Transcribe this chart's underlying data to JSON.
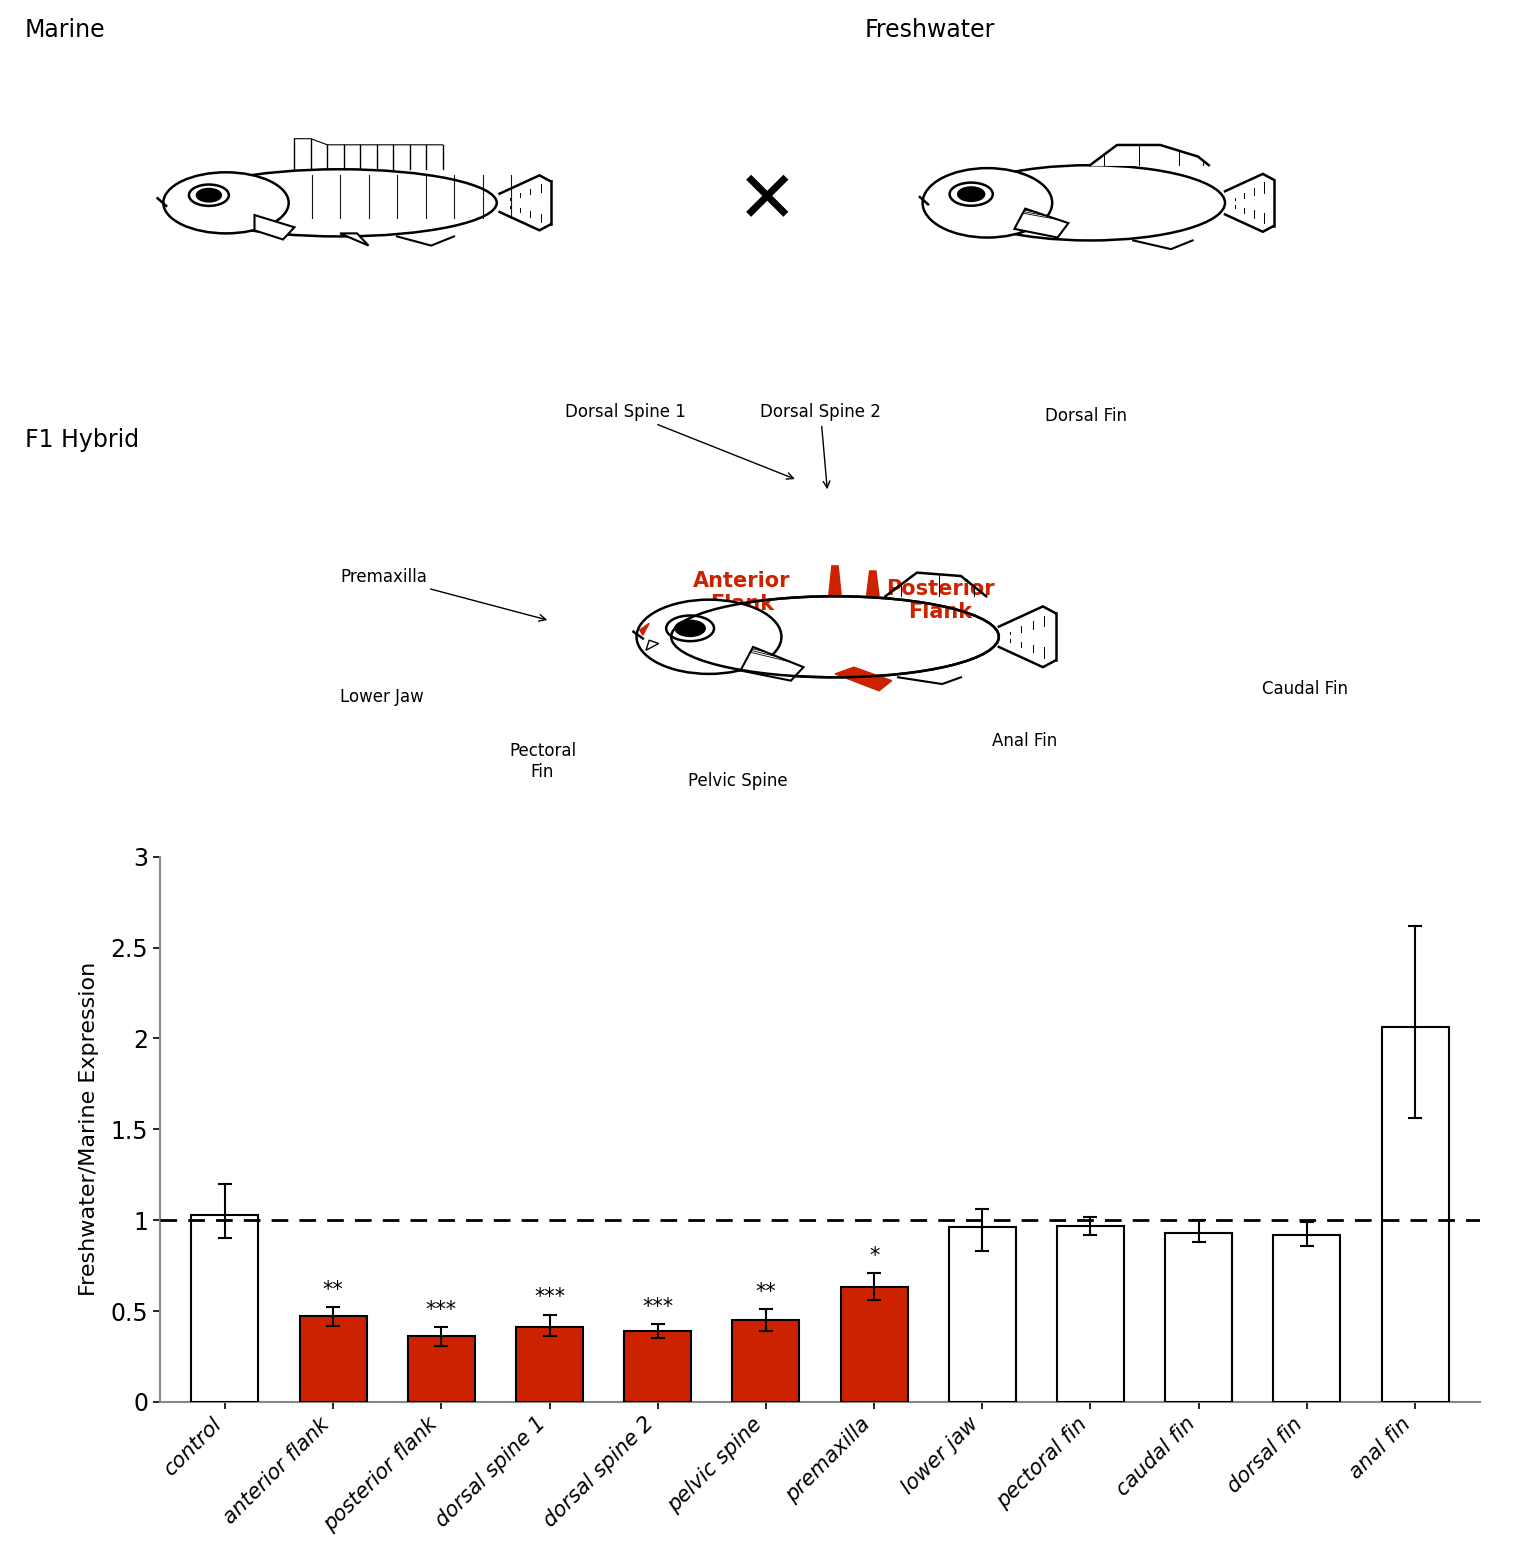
{
  "categories": [
    "control",
    "anterior flank",
    "posterior flank",
    "dorsal spine 1",
    "dorsal spine 2",
    "pelvic spine",
    "premaxilla",
    "lower jaw",
    "pectoral fin",
    "caudal fin",
    "dorsal fin",
    "anal fin"
  ],
  "values": [
    1.03,
    0.47,
    0.36,
    0.41,
    0.39,
    0.45,
    0.63,
    0.96,
    0.97,
    0.93,
    0.92,
    2.06
  ],
  "errors_upper": [
    0.17,
    0.05,
    0.05,
    0.07,
    0.04,
    0.06,
    0.08,
    0.1,
    0.05,
    0.07,
    0.07,
    0.56
  ],
  "errors_lower": [
    0.13,
    0.05,
    0.05,
    0.05,
    0.04,
    0.06,
    0.07,
    0.13,
    0.05,
    0.05,
    0.06,
    0.5
  ],
  "bar_colors": [
    "white",
    "#CC2200",
    "#CC2200",
    "#CC2200",
    "#CC2200",
    "#CC2200",
    "#CC2200",
    "white",
    "white",
    "white",
    "white",
    "white"
  ],
  "significance": [
    "",
    "**",
    "***",
    "***",
    "***",
    "**",
    "*",
    "",
    "",
    "",
    "",
    ""
  ],
  "ylabel": "Freshwater/Marine Expression",
  "ylim": [
    0,
    3
  ],
  "yticks": [
    0,
    0.5,
    1,
    1.5,
    2,
    2.5,
    3
  ],
  "dashed_line_y": 1.0,
  "bar_edge_color": "black",
  "bar_linewidth": 1.5,
  "error_capsize": 4,
  "error_linewidth": 1.5,
  "label_marine": "Marine",
  "label_freshwater": "Freshwater",
  "label_f1hybrid": "F1 Hybrid",
  "label_dorsal_spine1": "Dorsal Spine 1",
  "label_dorsal_spine2": "Dorsal Spine 2",
  "label_dorsal_fin": "Dorsal Fin",
  "label_premaxilla": "Premaxilla",
  "label_anterior_flank": "Anterior\nFlank",
  "label_posterior_flank": "Posterior\nFlank",
  "label_lower_jaw": "Lower Jaw",
  "label_pectoral_fin": "Pectoral\nFin",
  "label_pelvic_spine": "Pelvic Spine",
  "label_anal_fin": "Anal Fin",
  "label_caudal_fin": "Caudal Fin",
  "red_color": "#CC2200",
  "fish_lw": 1.8
}
